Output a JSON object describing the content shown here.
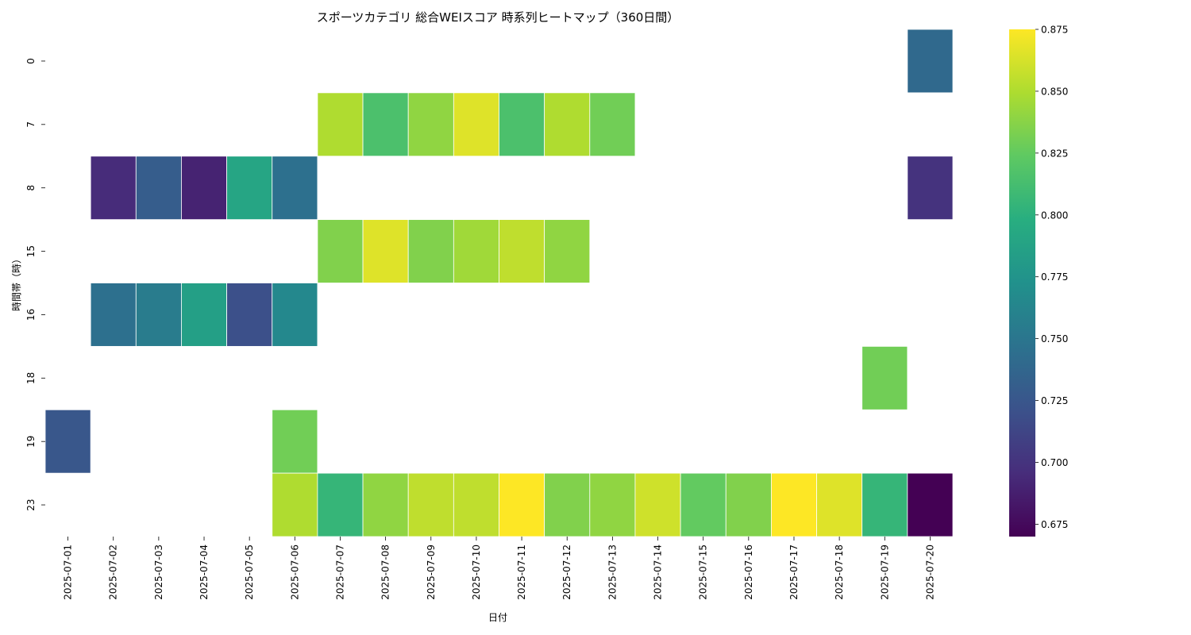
{
  "chart_data": {
    "type": "heatmap",
    "title": "スポーツカテゴリ 総合WEIスコア 時系列ヒートマップ（360日間）",
    "xlabel": "日付",
    "ylabel": "時間帯（時）",
    "x_categories": [
      "2025-07-01",
      "2025-07-02",
      "2025-07-03",
      "2025-07-04",
      "2025-07-05",
      "2025-07-06",
      "2025-07-07",
      "2025-07-08",
      "2025-07-09",
      "2025-07-10",
      "2025-07-11",
      "2025-07-12",
      "2025-07-13",
      "2025-07-14",
      "2025-07-15",
      "2025-07-16",
      "2025-07-17",
      "2025-07-18",
      "2025-07-19",
      "2025-07-20"
    ],
    "y_categories": [
      "0",
      "7",
      "8",
      "15",
      "16",
      "18",
      "19",
      "23"
    ],
    "values": [
      [
        null,
        null,
        null,
        null,
        null,
        null,
        null,
        null,
        null,
        null,
        null,
        null,
        null,
        null,
        null,
        null,
        null,
        null,
        null,
        0.74
      ],
      [
        null,
        null,
        null,
        null,
        null,
        null,
        0.85,
        0.815,
        0.84,
        0.865,
        0.815,
        0.85,
        0.83,
        null,
        null,
        null,
        null,
        null,
        null,
        null
      ],
      [
        null,
        0.695,
        0.73,
        0.69,
        0.79,
        0.745,
        null,
        null,
        null,
        null,
        null,
        null,
        null,
        null,
        null,
        null,
        null,
        null,
        null,
        0.7
      ],
      [
        null,
        null,
        null,
        null,
        null,
        null,
        0.835,
        0.865,
        0.835,
        0.845,
        0.855,
        0.84,
        null,
        null,
        null,
        null,
        null,
        null,
        null,
        null
      ],
      [
        null,
        0.745,
        0.755,
        0.785,
        0.72,
        0.765,
        null,
        null,
        null,
        null,
        null,
        null,
        null,
        null,
        null,
        null,
        null,
        null,
        null,
        null
      ],
      [
        null,
        null,
        null,
        null,
        null,
        null,
        null,
        null,
        null,
        null,
        null,
        null,
        null,
        null,
        null,
        null,
        null,
        null,
        0.83,
        null
      ],
      [
        0.725,
        null,
        null,
        null,
        null,
        0.83,
        null,
        null,
        null,
        null,
        null,
        null,
        null,
        null,
        null,
        null,
        null,
        null,
        null,
        null
      ],
      [
        null,
        null,
        null,
        null,
        null,
        0.85,
        0.805,
        0.84,
        0.855,
        0.855,
        0.875,
        0.835,
        0.84,
        0.86,
        0.825,
        0.835,
        0.875,
        0.865,
        0.805,
        0.67
      ]
    ],
    "colorscale": "viridis",
    "vmin": 0.67,
    "vmax": 0.875,
    "colorbar_ticks": [
      "0.675",
      "0.700",
      "0.725",
      "0.750",
      "0.775",
      "0.800",
      "0.825",
      "0.850",
      "0.875"
    ],
    "colorbar_tick_values": [
      0.675,
      0.7,
      0.725,
      0.75,
      0.775,
      0.8,
      0.825,
      0.85,
      0.875
    ],
    "grid": false,
    "legend": "colorbar-right"
  }
}
